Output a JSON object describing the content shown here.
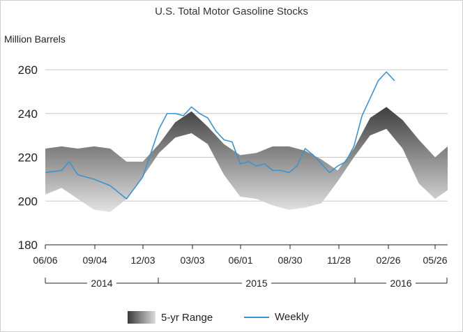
{
  "chart_data": {
    "type": "area",
    "title": "U.S. Total Motor Gasoline Stocks",
    "ylabel": "Million Barrels",
    "xlabel": "",
    "ylim": [
      180,
      265
    ],
    "yticks": [
      "180",
      "200",
      "220",
      "240",
      "260"
    ],
    "x_tick_labels": [
      "06/06",
      "09/04",
      "12/03",
      "03/03",
      "06/01",
      "08/30",
      "11/28",
      "02/26",
      "05/26"
    ],
    "year_labels": [
      "2014",
      "2015",
      "2016"
    ],
    "grid": true,
    "legend_position": "bottom",
    "colors": {
      "range_dark": "#333333",
      "range_light": "#dddddd",
      "weekly": "#3d93cc",
      "grid": "#c8c8c8"
    },
    "series": [
      {
        "name": "5-yr Range",
        "kind": "band",
        "points": [
          [
            "06/06",
            203,
            224
          ],
          [
            "07/06",
            206,
            225
          ],
          [
            "08/05",
            201,
            224
          ],
          [
            "09/04",
            196,
            225
          ],
          [
            "10/04",
            195,
            224
          ],
          [
            "11/03",
            201,
            218
          ],
          [
            "12/03",
            211,
            218
          ],
          [
            "01/02",
            222,
            226
          ],
          [
            "02/01",
            229,
            236
          ],
          [
            "03/03",
            231,
            241
          ],
          [
            "04/02",
            226,
            234
          ],
          [
            "05/02",
            212,
            226
          ],
          [
            "06/01",
            202,
            221
          ],
          [
            "07/01",
            201,
            222
          ],
          [
            "07/31",
            198,
            225
          ],
          [
            "08/30",
            196,
            225
          ],
          [
            "09/29",
            197,
            223
          ],
          [
            "10/29",
            199,
            219
          ],
          [
            "11/28",
            209,
            214
          ],
          [
            "12/28",
            220,
            224
          ],
          [
            "01/27",
            230,
            238
          ],
          [
            "02/26",
            233,
            243
          ],
          [
            "03/27",
            224,
            237
          ],
          [
            "04/26",
            208,
            228
          ],
          [
            "05/26",
            201,
            220
          ],
          [
            "06/25",
            205,
            225
          ]
        ]
      },
      {
        "name": "Weekly",
        "kind": "line",
        "points": [
          [
            "06/06",
            213
          ],
          [
            "07/06",
            214
          ],
          [
            "07/20",
            218
          ],
          [
            "08/05",
            212
          ],
          [
            "09/04",
            210
          ],
          [
            "10/04",
            207
          ],
          [
            "11/03",
            201
          ],
          [
            "12/03",
            211
          ],
          [
            "12/18",
            222
          ],
          [
            "01/02",
            233
          ],
          [
            "01/17",
            240
          ],
          [
            "02/01",
            240
          ],
          [
            "02/16",
            239
          ],
          [
            "03/03",
            243
          ],
          [
            "03/18",
            240
          ],
          [
            "04/02",
            238
          ],
          [
            "04/17",
            232
          ],
          [
            "05/02",
            228
          ],
          [
            "05/17",
            227
          ],
          [
            "06/01",
            217
          ],
          [
            "06/16",
            218
          ],
          [
            "07/01",
            216
          ],
          [
            "07/16",
            217
          ],
          [
            "07/31",
            214
          ],
          [
            "08/15",
            214
          ],
          [
            "08/30",
            213
          ],
          [
            "09/14",
            216
          ],
          [
            "09/29",
            224
          ],
          [
            "10/14",
            221
          ],
          [
            "10/29",
            217
          ],
          [
            "11/13",
            213
          ],
          [
            "11/28",
            216
          ],
          [
            "12/13",
            218
          ],
          [
            "12/28",
            225
          ],
          [
            "01/12",
            239
          ],
          [
            "01/27",
            247
          ],
          [
            "02/11",
            255
          ],
          [
            "02/26",
            259
          ],
          [
            "03/12",
            255
          ]
        ]
      }
    ]
  }
}
